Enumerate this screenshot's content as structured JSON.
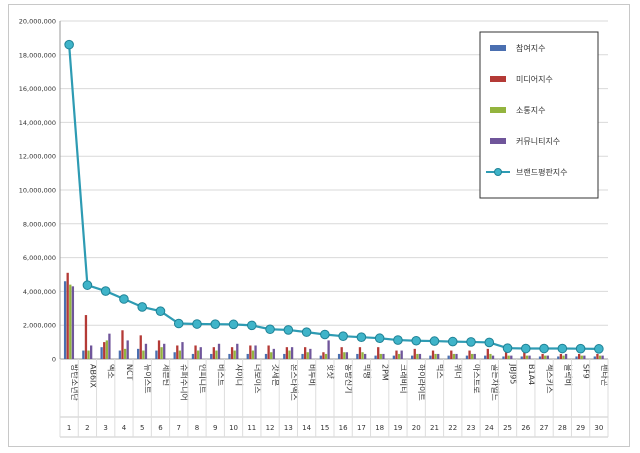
{
  "chart_data": {
    "type": "bar",
    "title": "",
    "xlabel": "",
    "ylabel": "",
    "ylim": [
      0,
      20000000
    ],
    "y_ticks": [
      "0",
      "2,000,000",
      "4,000,000",
      "6,000,000",
      "8,000,000",
      "10,000,000",
      "12,000,000",
      "14,000,000",
      "16,000,000",
      "18,000,000",
      "20,000,000"
    ],
    "grid": true,
    "legend_position": "top-right",
    "categories": [
      "방탄소년단",
      "AB6IX",
      "엑소",
      "NCT",
      "뉴이스트",
      "세븐틴",
      "슈퍼주니어",
      "인피니트",
      "비스트",
      "샤이니",
      "더보이즈",
      "갓세븐",
      "몬스타엑스",
      "비투비",
      "핫샷",
      "동방신기",
      "빅뱅",
      "2PM",
      "크래비티",
      "하이라이트",
      "빅스",
      "위너",
      "아스트로",
      "골든차일드",
      "JBJ95",
      "B1A4",
      "젝스키스",
      "블락비",
      "SF9",
      "펜타곤"
    ],
    "rank_labels": [
      "1",
      "2",
      "3",
      "4",
      "5",
      "6",
      "7",
      "8",
      "9",
      "10",
      "11",
      "12",
      "13",
      "14",
      "15",
      "16",
      "17",
      "18",
      "19",
      "20",
      "21",
      "22",
      "23",
      "24",
      "25",
      "26",
      "27",
      "28",
      "29",
      "30"
    ],
    "series": [
      {
        "name": "참여지수",
        "kind": "bar",
        "color": "#4a6fb0",
        "values": [
          4600000,
          500000,
          700000,
          500000,
          600000,
          500000,
          400000,
          300000,
          300000,
          300000,
          300000,
          300000,
          300000,
          300000,
          200000,
          300000,
          300000,
          200000,
          200000,
          200000,
          200000,
          200000,
          200000,
          200000,
          150000,
          150000,
          150000,
          150000,
          150000,
          150000
        ]
      },
      {
        "name": "미디어지수",
        "kind": "bar",
        "color": "#b43a36",
        "values": [
          5100000,
          2600000,
          1000000,
          1700000,
          1400000,
          1100000,
          800000,
          800000,
          700000,
          700000,
          800000,
          800000,
          700000,
          700000,
          400000,
          700000,
          700000,
          700000,
          500000,
          600000,
          500000,
          500000,
          500000,
          600000,
          400000,
          400000,
          300000,
          300000,
          300000,
          300000
        ]
      },
      {
        "name": "소통지수",
        "kind": "bar",
        "color": "#93b43e",
        "values": [
          4400000,
          500000,
          1100000,
          600000,
          500000,
          700000,
          500000,
          500000,
          500000,
          500000,
          500000,
          400000,
          500000,
          400000,
          300000,
          400000,
          400000,
          300000,
          300000,
          300000,
          300000,
          300000,
          300000,
          300000,
          200000,
          200000,
          200000,
          200000,
          200000,
          200000
        ]
      },
      {
        "name": "커뮤니티지수",
        "kind": "bar",
        "color": "#6f559a",
        "values": [
          4300000,
          800000,
          1500000,
          1100000,
          900000,
          900000,
          1000000,
          700000,
          900000,
          900000,
          800000,
          600000,
          700000,
          600000,
          1100000,
          400000,
          300000,
          300000,
          500000,
          300000,
          300000,
          300000,
          300000,
          200000,
          200000,
          200000,
          200000,
          300000,
          200000,
          200000
        ]
      },
      {
        "name": "브랜드평판지수",
        "kind": "line",
        "color": "#2e9bb3",
        "values": [
          18600000,
          4370000,
          4020000,
          3550000,
          3080000,
          2830000,
          2100000,
          2070000,
          2060000,
          2050000,
          1990000,
          1760000,
          1720000,
          1590000,
          1450000,
          1350000,
          1290000,
          1230000,
          1120000,
          1080000,
          1060000,
          1030000,
          1010000,
          980000,
          640000,
          620000,
          620000,
          620000,
          610000,
          600000
        ]
      }
    ]
  }
}
